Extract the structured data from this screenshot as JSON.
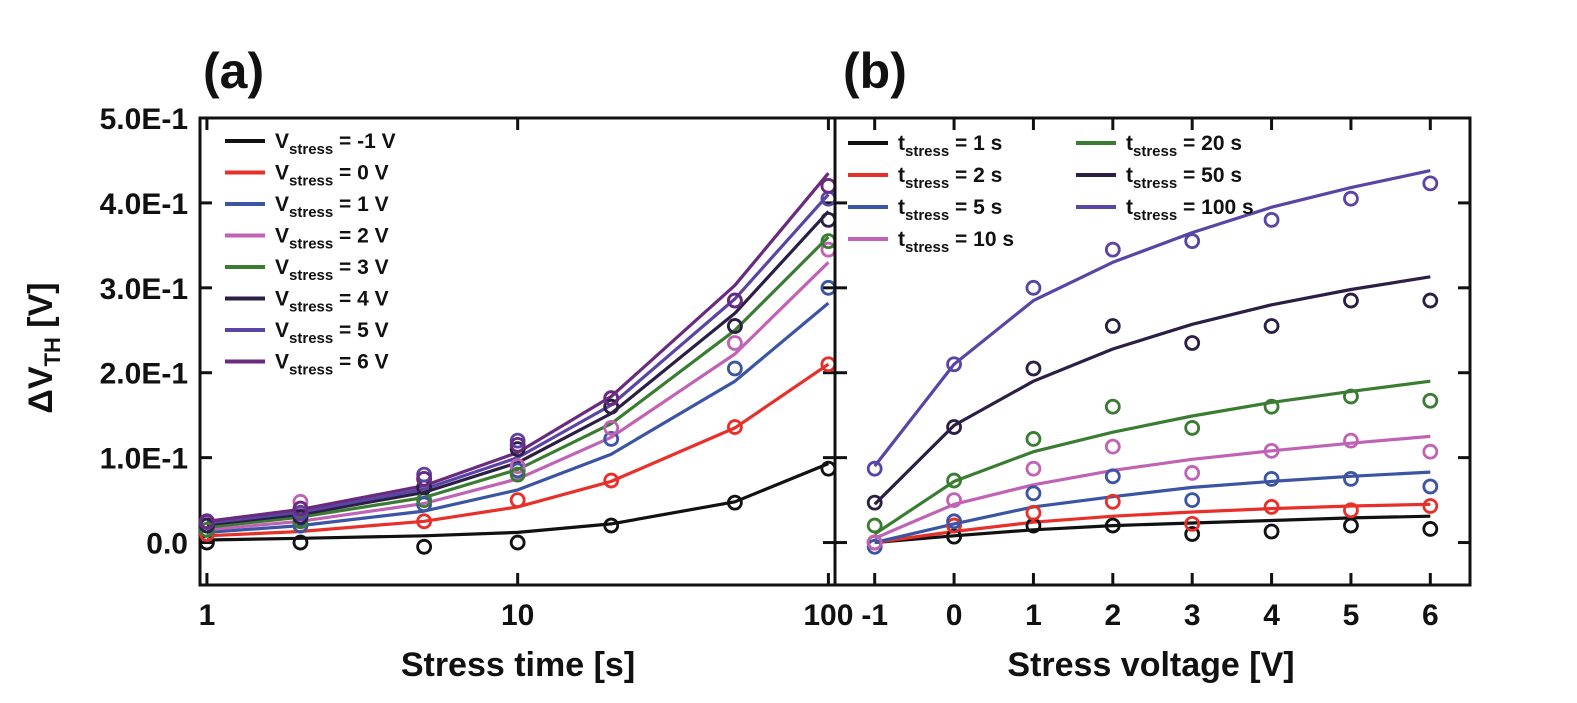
{
  "panel_labels": {
    "a": "(a)",
    "b": "(b)"
  },
  "colors": {
    "black": "#111111",
    "red": "#e8302a",
    "blue": "#3b55a4",
    "pink": "#c163b4",
    "green": "#3a7d32",
    "dark": "#2c1f45",
    "purple": "#5a45a6",
    "violet": "#6a2a7e"
  },
  "y_axis": {
    "title_main": "ΔV",
    "title_sub": "TH",
    "title_unit": " [V]",
    "ticks": [
      "0.0",
      "1.0E-1",
      "2.0E-1",
      "3.0E-1",
      "4.0E-1",
      "5.0E-1"
    ],
    "tick_values": [
      0,
      0.1,
      0.2,
      0.3,
      0.4,
      0.5
    ]
  },
  "chart_data": [
    {
      "panel": "(a)",
      "type": "scatter",
      "xlabel": "Stress time [s]",
      "ylabel": "ΔV_TH [V]",
      "x_scale": "log",
      "xlim": [
        0.95,
        105
      ],
      "ylim": [
        -0.05,
        0.5
      ],
      "x_ticks": [
        1,
        10,
        100
      ],
      "x_tick_labels": [
        "1",
        "10",
        "100"
      ],
      "x": [
        1,
        2,
        5,
        10,
        20,
        50,
        100
      ],
      "legend_position": "top-left",
      "series": [
        {
          "name": "V_stress = -1 V",
          "legend_main": "V",
          "legend_sub": "stress",
          "legend_rest": " = -1 V",
          "color_key": "black",
          "points": [
            0.0,
            0.0,
            -0.005,
            0.0,
            0.02,
            0.047,
            0.087
          ],
          "fit": [
            0.003,
            0.005,
            0.008,
            0.012,
            0.022,
            0.048,
            0.093
          ]
        },
        {
          "name": "V_stress = 0 V",
          "legend_main": "V",
          "legend_sub": "stress",
          "legend_rest": " = 0 V",
          "color_key": "red",
          "points": [
            0.01,
            0.02,
            0.025,
            0.05,
            0.073,
            0.136,
            0.21
          ],
          "fit": [
            0.008,
            0.013,
            0.025,
            0.042,
            0.072,
            0.135,
            0.21
          ]
        },
        {
          "name": "V_stress = 1 V",
          "legend_main": "V",
          "legend_sub": "stress",
          "legend_rest": " = 1 V",
          "color_key": "blue",
          "points": [
            0.02,
            0.02,
            0.045,
            0.085,
            0.122,
            0.205,
            0.3
          ],
          "fit": [
            0.012,
            0.02,
            0.037,
            0.062,
            0.104,
            0.19,
            0.282
          ]
        },
        {
          "name": "V_stress = 2 V",
          "legend_main": "V",
          "legend_sub": "stress",
          "legend_rest": " = 2 V",
          "color_key": "pink",
          "points": [
            0.025,
            0.048,
            0.075,
            0.09,
            0.135,
            0.235,
            0.345
          ],
          "fit": [
            0.015,
            0.025,
            0.046,
            0.075,
            0.124,
            0.222,
            0.33
          ]
        },
        {
          "name": "V_stress = 3 V",
          "legend_main": "V",
          "legend_sub": "stress",
          "legend_rest": " = 3 V",
          "color_key": "green",
          "points": [
            0.015,
            0.025,
            0.05,
            0.08,
            0.16,
            0.255,
            0.355
          ],
          "fit": [
            0.018,
            0.03,
            0.053,
            0.086,
            0.14,
            0.25,
            0.36
          ]
        },
        {
          "name": "V_stress = 4 V",
          "legend_main": "V",
          "legend_sub": "stress",
          "legend_rest": " = 4 V",
          "color_key": "dark",
          "points": [
            0.02,
            0.03,
            0.065,
            0.11,
            0.16,
            0.255,
            0.38
          ],
          "fit": [
            0.021,
            0.033,
            0.059,
            0.094,
            0.152,
            0.27,
            0.39
          ]
        },
        {
          "name": "V_stress = 5 V",
          "legend_main": "V",
          "legend_sub": "stress",
          "legend_rest": " = 5 V",
          "color_key": "purple",
          "points": [
            0.024,
            0.035,
            0.08,
            0.12,
            0.17,
            0.285,
            0.405
          ],
          "fit": [
            0.023,
            0.036,
            0.063,
            0.1,
            0.162,
            0.287,
            0.41
          ]
        },
        {
          "name": "V_stress = 6 V",
          "legend_main": "V",
          "legend_sub": "stress",
          "legend_rest": " = 6 V",
          "color_key": "violet",
          "points": [
            0.025,
            0.04,
            0.075,
            0.115,
            0.17,
            0.285,
            0.42
          ],
          "fit": [
            0.025,
            0.039,
            0.067,
            0.106,
            0.172,
            0.303,
            0.435
          ]
        }
      ]
    },
    {
      "panel": "(b)",
      "type": "scatter",
      "xlabel": "Stress voltage [V]",
      "ylabel": "ΔV_TH [V]",
      "x_scale": "linear",
      "xlim": [
        -1.5,
        6.5
      ],
      "ylim": [
        -0.05,
        0.5
      ],
      "x_ticks": [
        -1,
        0,
        1,
        2,
        3,
        4,
        5,
        6
      ],
      "x_tick_labels": [
        "-1",
        "0",
        "1",
        "2",
        "3",
        "4",
        "5",
        "6"
      ],
      "x": [
        -1,
        0,
        1,
        2,
        3,
        4,
        5,
        6
      ],
      "legend_position": "top-left",
      "series": [
        {
          "name": "t_stress = 1 s",
          "legend_main": "t",
          "legend_sub": "stress",
          "legend_rest": " = 1 s",
          "color_key": "black",
          "points": [
            0.0,
            0.007,
            0.02,
            0.02,
            0.01,
            0.013,
            0.02,
            0.016
          ],
          "fit": [
            0.0,
            0.008,
            0.015,
            0.02,
            0.023,
            0.026,
            0.029,
            0.031
          ]
        },
        {
          "name": "t_stress = 2 s",
          "legend_main": "t",
          "legend_sub": "stress",
          "legend_rest": " = 2 s",
          "color_key": "red",
          "points": [
            0.0,
            0.02,
            0.035,
            0.048,
            0.022,
            0.042,
            0.038,
            0.043
          ],
          "fit": [
            0.0,
            0.013,
            0.024,
            0.031,
            0.036,
            0.04,
            0.043,
            0.045
          ]
        },
        {
          "name": "t_stress = 5 s",
          "legend_main": "t",
          "legend_sub": "stress",
          "legend_rest": " = 5 s",
          "color_key": "blue",
          "points": [
            -0.005,
            0.025,
            0.058,
            0.078,
            0.05,
            0.075,
            0.075,
            0.066
          ],
          "fit": [
            0.0,
            0.022,
            0.042,
            0.054,
            0.065,
            0.072,
            0.078,
            0.083
          ]
        },
        {
          "name": "t_stress = 10 s",
          "legend_main": "t",
          "legend_sub": "stress",
          "legend_rest": " = 10 s",
          "color_key": "pink",
          "points": [
            0.0,
            0.05,
            0.087,
            0.113,
            0.082,
            0.108,
            0.12,
            0.107
          ],
          "fit": [
            0.005,
            0.045,
            0.068,
            0.085,
            0.098,
            0.108,
            0.117,
            0.125
          ]
        },
        {
          "name": "t_stress = 20 s",
          "legend_main": "t",
          "legend_sub": "stress",
          "legend_rest": " = 20 s",
          "color_key": "green",
          "points": [
            0.02,
            0.073,
            0.122,
            0.16,
            0.135,
            0.16,
            0.172,
            0.167
          ],
          "fit": [
            0.01,
            0.072,
            0.107,
            0.13,
            0.149,
            0.165,
            0.178,
            0.19
          ]
        },
        {
          "name": "t_stress = 50 s",
          "legend_main": "t",
          "legend_sub": "stress",
          "legend_rest": " = 50 s",
          "color_key": "dark",
          "points": [
            0.047,
            0.136,
            0.205,
            0.255,
            0.235,
            0.255,
            0.285,
            0.285
          ],
          "fit": [
            0.045,
            0.138,
            0.19,
            0.228,
            0.257,
            0.28,
            0.298,
            0.313
          ]
        },
        {
          "name": "t_stress = 100 s",
          "legend_main": "t",
          "legend_sub": "stress",
          "legend_rest": " = 100 s",
          "color_key": "purple",
          "points": [
            0.087,
            0.21,
            0.3,
            0.345,
            0.355,
            0.38,
            0.405,
            0.423
          ],
          "fit": [
            0.09,
            0.21,
            0.285,
            0.33,
            0.365,
            0.395,
            0.418,
            0.438
          ]
        }
      ]
    }
  ]
}
